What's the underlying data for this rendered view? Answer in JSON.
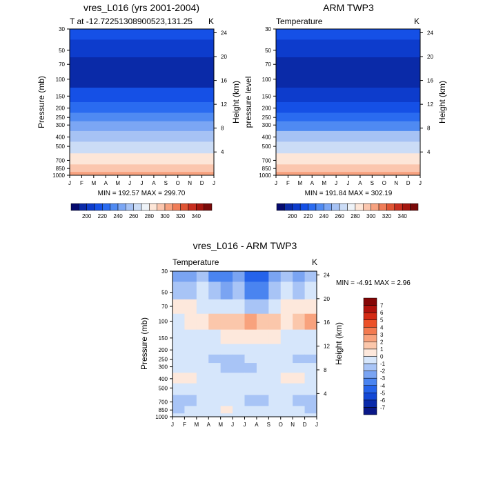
{
  "chart_data": [
    {
      "type": "heatmap",
      "title": "vres_L016 (yrs 2001-2004)",
      "subtitle_left": "T at -12.72251308900523,131.25",
      "subtitle_right": "K",
      "ylabel": "Pressure (mb)",
      "ylabel_right": "Height (km)",
      "xticks": [
        "J",
        "F",
        "M",
        "A",
        "M",
        "J",
        "J",
        "A",
        "S",
        "O",
        "N",
        "D",
        "J"
      ],
      "yticks": [
        "30",
        "50",
        "70",
        "100",
        "150",
        "200",
        "250",
        "300",
        "400",
        "500",
        "700",
        "850",
        "1000"
      ],
      "height_ticks": [
        "24",
        "20",
        "16",
        "12",
        "8",
        "4"
      ],
      "stats_text": "MIN = 192.57 MAX = 299.70",
      "bands": [
        {
          "p": 30,
          "v": 212
        },
        {
          "p": 50,
          "v": 205
        },
        {
          "p": 70,
          "v": 197
        },
        {
          "p": 100,
          "v": 194
        },
        {
          "p": 150,
          "v": 210
        },
        {
          "p": 200,
          "v": 220
        },
        {
          "p": 250,
          "v": 230
        },
        {
          "p": 300,
          "v": 240
        },
        {
          "p": 400,
          "v": 252
        },
        {
          "p": 500,
          "v": 262
        },
        {
          "p": 700,
          "v": 280
        },
        {
          "p": 850,
          "v": 292
        },
        {
          "p": 1000,
          "v": 300
        }
      ],
      "colorbar_ticks": [
        "200",
        "220",
        "240",
        "260",
        "280",
        "300",
        "320",
        "340"
      ]
    },
    {
      "type": "heatmap",
      "title": "ARM TWP3",
      "subtitle_left": "Temperature",
      "subtitle_right": "K",
      "ylabel": "pressure level",
      "ylabel_right": "Height (km)",
      "xticks": [
        "J",
        "F",
        "M",
        "A",
        "M",
        "J",
        "J",
        "A",
        "S",
        "O",
        "N",
        "D",
        "J"
      ],
      "yticks": [
        "30",
        "50",
        "70",
        "100",
        "150",
        "200",
        "250",
        "300",
        "400",
        "500",
        "700",
        "850",
        "1000"
      ],
      "height_ticks": [
        "24",
        "20",
        "16",
        "12",
        "8",
        "4"
      ],
      "stats_text": "MIN = 191.84 MAX = 302.19",
      "bands": [
        {
          "p": 30,
          "v": 214
        },
        {
          "p": 50,
          "v": 206
        },
        {
          "p": 70,
          "v": 197
        },
        {
          "p": 100,
          "v": 193
        },
        {
          "p": 150,
          "v": 209
        },
        {
          "p": 200,
          "v": 219
        },
        {
          "p": 250,
          "v": 229
        },
        {
          "p": 300,
          "v": 239
        },
        {
          "p": 400,
          "v": 251
        },
        {
          "p": 500,
          "v": 263
        },
        {
          "p": 700,
          "v": 281
        },
        {
          "p": 850,
          "v": 293
        },
        {
          "p": 1000,
          "v": 302
        }
      ],
      "colorbar_ticks": [
        "200",
        "220",
        "240",
        "260",
        "280",
        "300",
        "320",
        "340"
      ]
    },
    {
      "type": "heatmap",
      "title": "vres_L016 - ARM TWP3",
      "subtitle_left": "Temperature",
      "subtitle_right": "K",
      "ylabel": "Pressure (mb)",
      "ylabel_right": "Height (km)",
      "xticks": [
        "J",
        "F",
        "M",
        "A",
        "M",
        "J",
        "J",
        "A",
        "S",
        "O",
        "N",
        "D",
        "J"
      ],
      "yticks": [
        "30",
        "50",
        "70",
        "100",
        "150",
        "200",
        "250",
        "300",
        "400",
        "500",
        "700",
        "850",
        "1000"
      ],
      "height_ticks": [
        "24",
        "20",
        "16",
        "12",
        "8",
        "4"
      ],
      "stats_text": "MIN = -4.91 MAX =   2.96",
      "colorbar_labels": [
        "7",
        "6",
        "5",
        "4",
        "3",
        "2",
        "1",
        "0",
        "-1",
        "-2",
        "-3",
        "-4",
        "-5",
        "-6",
        "-7"
      ],
      "difference_grid": {
        "columns": 12,
        "rows_note": "pressure levels top to bottom",
        "values": [
          [
            -3,
            -3,
            -2,
            -4,
            -4,
            -3,
            -5,
            -5,
            -3,
            -2,
            -3,
            -2
          ],
          [
            -2,
            -2,
            -1,
            -2,
            -3,
            -2,
            -4,
            -4,
            -2,
            -1,
            -2,
            -1
          ],
          [
            0,
            0,
            -1,
            -1,
            -1,
            -1,
            -2,
            -2,
            -1,
            0,
            0,
            0
          ],
          [
            -1,
            0,
            0,
            1,
            1,
            1,
            2,
            1,
            1,
            0,
            1,
            2
          ],
          [
            -1,
            -1,
            -1,
            -1,
            0,
            0,
            0,
            0,
            0,
            -1,
            -1,
            -1
          ],
          [
            -1,
            -1,
            -1,
            -1,
            -1,
            -1,
            -1,
            -1,
            -1,
            -1,
            -1,
            -1
          ],
          [
            -1,
            -1,
            -1,
            -2,
            -2,
            -2,
            -1,
            -1,
            -1,
            -1,
            -2,
            -2
          ],
          [
            -1,
            -1,
            -1,
            -1,
            -2,
            -2,
            -2,
            -1,
            -1,
            -1,
            -1,
            -1
          ],
          [
            0,
            0,
            -1,
            -1,
            -1,
            -1,
            -1,
            -1,
            -1,
            0,
            0,
            -1
          ],
          [
            -1,
            -1,
            -1,
            -1,
            -1,
            -1,
            -1,
            -1,
            -1,
            -1,
            -1,
            -1
          ],
          [
            -2,
            -2,
            -1,
            -1,
            -1,
            -1,
            -2,
            -2,
            -1,
            -1,
            -2,
            -2
          ],
          [
            -2,
            -1,
            -1,
            -1,
            0,
            -1,
            -1,
            -1,
            -1,
            -1,
            -1,
            -2
          ],
          [
            -1,
            -1,
            -1,
            -1,
            -1,
            -1,
            -1,
            -1,
            -1,
            -1,
            -1,
            -1
          ]
        ]
      }
    }
  ],
  "colors": {
    "sequential": [
      "#050a6e",
      "#0a2aa8",
      "#0d3ccc",
      "#1550e6",
      "#2a6bf0",
      "#4f8af2",
      "#7ba6f4",
      "#a6c2f4",
      "#cbdcf6",
      "#eef3f8",
      "#fde6d8",
      "#fbc6ae",
      "#f7a280",
      "#f07d58",
      "#e05534",
      "#c82e1f",
      "#a5160f",
      "#7a0a0a"
    ],
    "diverging": [
      "#0a1888",
      "#0a2aaa",
      "#1348d6",
      "#2563ea",
      "#4a84f0",
      "#7aa4f2",
      "#a8c4f6",
      "#d6e6fb",
      "#fde8dc",
      "#fbc7ab",
      "#f8a27d",
      "#f37a50",
      "#ec5128",
      "#d42a14",
      "#b0120c",
      "#840606"
    ]
  }
}
